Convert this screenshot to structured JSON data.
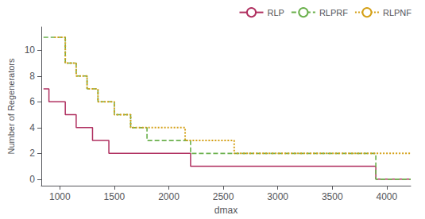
{
  "chart_data": {
    "type": "line",
    "xlabel": "dmax",
    "ylabel": "Number of Regenerators",
    "xlim": [
      830,
      4220
    ],
    "ylim": [
      -0.5,
      11.8
    ],
    "xticks": [
      1000,
      1500,
      2000,
      2500,
      3000,
      3500,
      4000
    ],
    "yticks": [
      0,
      2,
      4,
      6,
      8,
      10
    ],
    "grid": false,
    "legend": "upper right",
    "series": [
      {
        "name": "RLP",
        "color": "#b03060",
        "line_style": "solid",
        "x": [
          850,
          900,
          950,
          1050,
          1150,
          1300,
          1450,
          1750,
          2150,
          2200,
          3850,
          3900,
          4220
        ],
        "values": [
          7,
          6,
          6,
          5,
          4,
          3,
          2,
          2,
          2,
          1,
          1,
          0,
          0
        ]
      },
      {
        "name": "RLPRF",
        "color": "#6ab04c",
        "line_style": "dashed",
        "x": [
          850,
          950,
          1050,
          1150,
          1250,
          1350,
          1500,
          1650,
          1800,
          2150,
          2200,
          3850,
          3900,
          4220
        ],
        "values": [
          11,
          11,
          9,
          8,
          7,
          6,
          5,
          4,
          3,
          3,
          2,
          2,
          0,
          0
        ]
      },
      {
        "name": "RLPNF",
        "color": "#d4a017",
        "line_style": "dotted",
        "x": [
          950,
          1050,
          1150,
          1250,
          1350,
          1500,
          1650,
          1800,
          2150,
          2550,
          2600,
          3850,
          3900,
          4220
        ],
        "values": [
          11,
          9,
          8,
          7,
          6,
          5,
          4,
          4,
          3,
          3,
          2,
          2,
          2,
          2
        ]
      }
    ]
  }
}
